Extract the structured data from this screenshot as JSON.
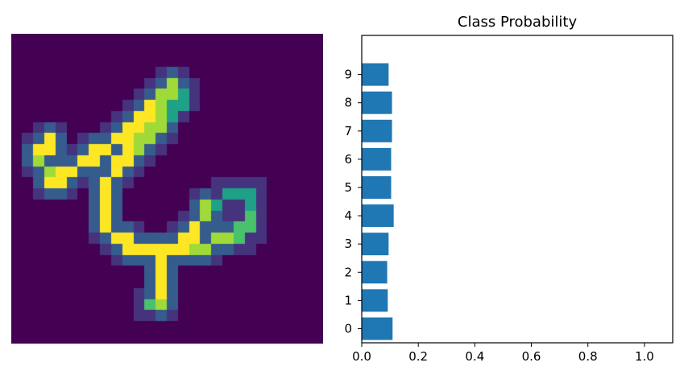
{
  "image_panel": {
    "type": "heatmap",
    "grid_rows": 28,
    "grid_cols": 28,
    "colormap": [
      "#440154",
      "#46337e",
      "#365c8d",
      "#277f8e",
      "#1fa187",
      "#4ac16d",
      "#a0da39",
      "#fde725"
    ],
    "strokes": [
      {
        "from": [
          3,
          9
        ],
        "to": [
          2,
          10
        ],
        "value": 1.0
      },
      {
        "from": [
          2,
          10
        ],
        "to": [
          3,
          13
        ],
        "value": 0.9
      },
      {
        "from": [
          3,
          13
        ],
        "to": [
          6,
          11
        ],
        "value": 1.0
      },
      {
        "from": [
          6,
          11
        ],
        "to": [
          9,
          9
        ],
        "value": 1.0
      },
      {
        "from": [
          9,
          9
        ],
        "to": [
          12,
          6
        ],
        "value": 1.0
      },
      {
        "from": [
          12,
          6
        ],
        "to": [
          14,
          4
        ],
        "value": 0.85
      },
      {
        "from": [
          12,
          6
        ],
        "to": [
          14,
          6
        ],
        "value": 0.55
      },
      {
        "from": [
          14,
          4
        ],
        "to": [
          15,
          5
        ],
        "value": 0.6
      },
      {
        "from": [
          15,
          5
        ],
        "to": [
          13,
          7
        ],
        "value": 0.55
      },
      {
        "from": [
          13,
          7
        ],
        "to": [
          10,
          10
        ],
        "value": 0.8
      },
      {
        "from": [
          10,
          10
        ],
        "to": [
          8,
          13
        ],
        "value": 1.0
      },
      {
        "from": [
          8,
          13
        ],
        "to": [
          8,
          17
        ],
        "value": 1.0
      },
      {
        "from": [
          8,
          17
        ],
        "to": [
          9,
          18
        ],
        "value": 1.0
      },
      {
        "from": [
          9,
          18
        ],
        "to": [
          11,
          19
        ],
        "value": 1.0
      },
      {
        "from": [
          11,
          19
        ],
        "to": [
          15,
          19
        ],
        "value": 1.0
      },
      {
        "from": [
          15,
          19
        ],
        "to": [
          19,
          18
        ],
        "value": 0.8
      },
      {
        "from": [
          19,
          18
        ],
        "to": [
          21,
          16
        ],
        "value": 0.7
      },
      {
        "from": [
          21,
          16
        ],
        "to": [
          21,
          14
        ],
        "value": 0.6
      },
      {
        "from": [
          21,
          14
        ],
        "to": [
          19,
          14
        ],
        "value": 0.5
      },
      {
        "from": [
          19,
          14
        ],
        "to": [
          17,
          15
        ],
        "value": 0.6
      },
      {
        "from": [
          17,
          15
        ],
        "to": [
          16,
          17
        ],
        "value": 0.9
      },
      {
        "from": [
          16,
          17
        ],
        "to": [
          14,
          19
        ],
        "value": 1.0
      },
      {
        "from": [
          13,
          19
        ],
        "to": [
          13,
          23
        ],
        "value": 1.0
      },
      {
        "from": [
          13,
          23
        ],
        "to": [
          13,
          24
        ],
        "value": 0.9
      },
      {
        "from": [
          12,
          24
        ],
        "to": [
          13,
          24
        ],
        "value": 0.7
      }
    ]
  },
  "chart_data": {
    "type": "bar",
    "orientation": "horizontal",
    "title": "Class Probability",
    "categories": [
      "0",
      "1",
      "2",
      "3",
      "4",
      "5",
      "6",
      "7",
      "8",
      "9"
    ],
    "values": [
      0.109,
      0.092,
      0.09,
      0.095,
      0.113,
      0.104,
      0.104,
      0.107,
      0.107,
      0.095
    ],
    "xlim": [
      0,
      1.1
    ],
    "xticks": [
      0.0,
      0.2,
      0.4,
      0.6,
      0.8,
      1.0
    ],
    "xtick_labels": [
      "0.0",
      "0.2",
      "0.4",
      "0.6",
      "0.8",
      "1.0"
    ],
    "xlabel": "",
    "ylabel": "",
    "bar_color": "#1f77b4"
  }
}
